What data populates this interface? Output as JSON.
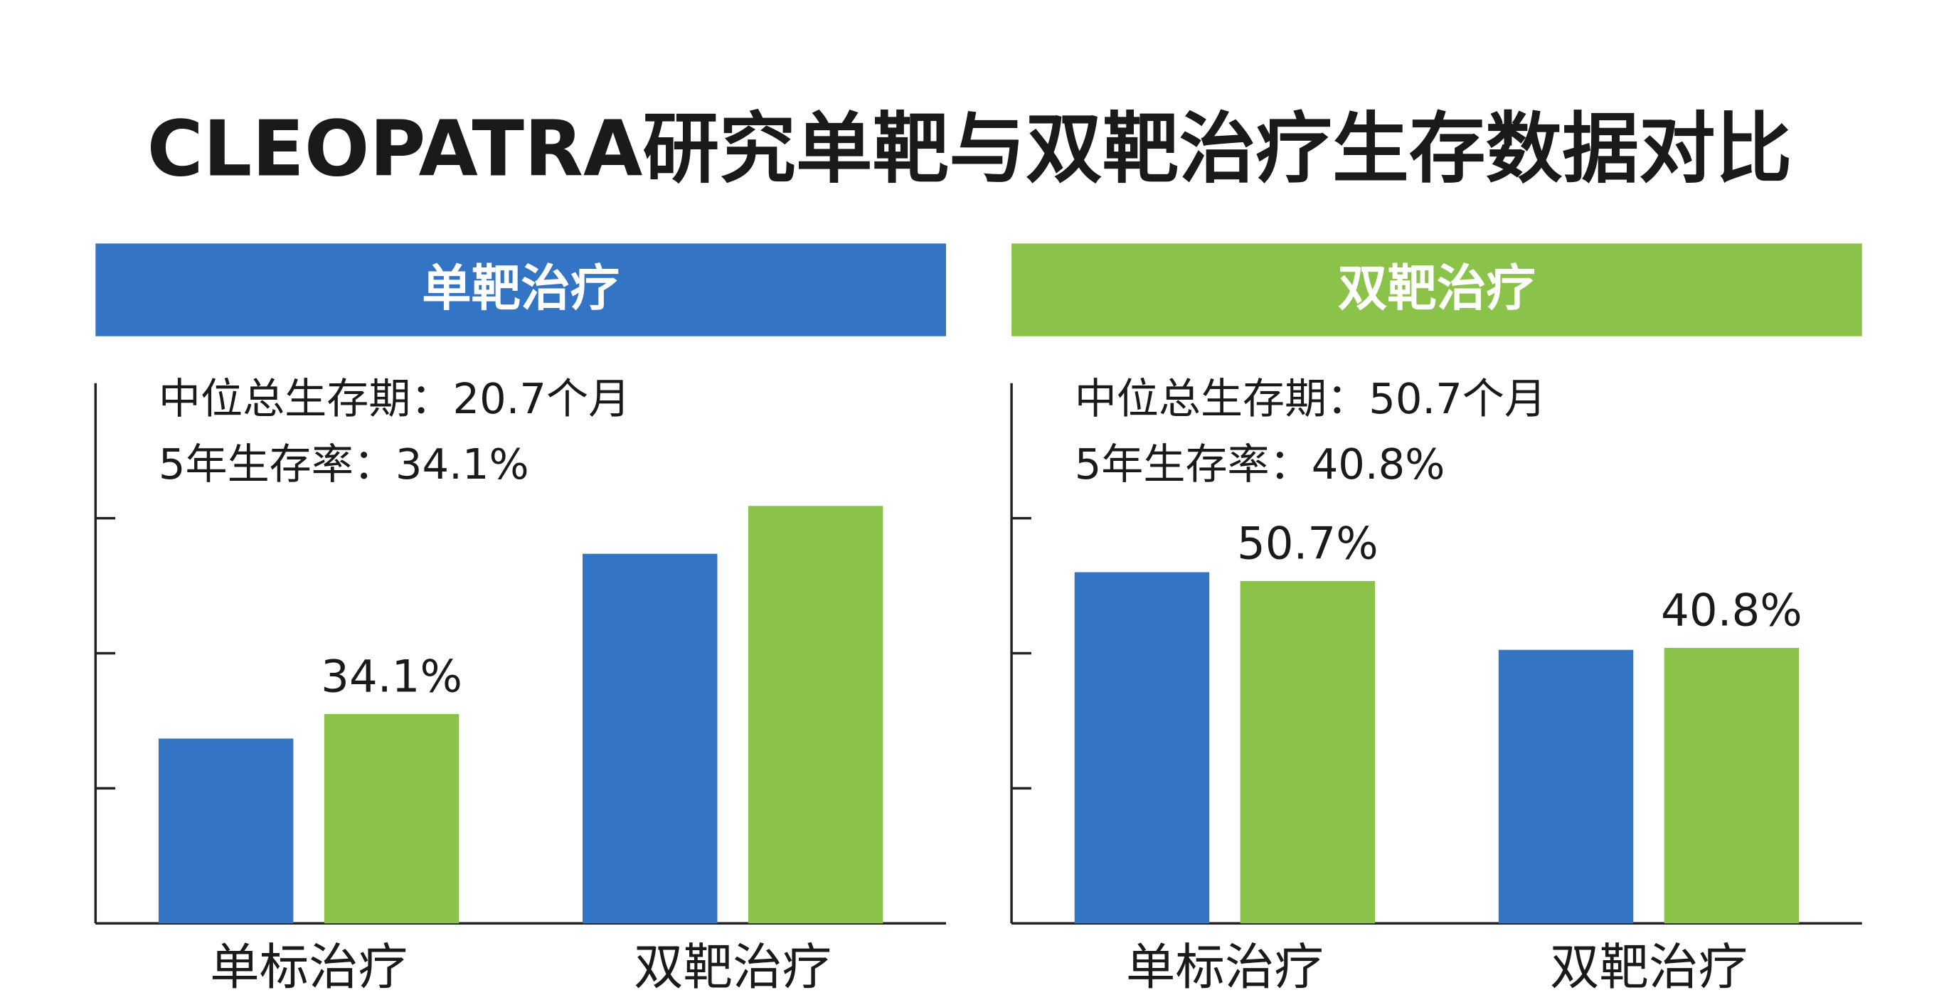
{
  "title": "CLEOPATRA研究单靶与双靶治疗生存数据对比",
  "chart_data": [
    {
      "type": "bar",
      "title": "单靶治疗",
      "title_color": "#3474c4",
      "annotations": [
        "中位总生存期：20.7个月",
        "5年生存率：34.1%"
      ],
      "categories": [
        "单标治疗",
        "双靶治疗"
      ],
      "series": [
        {
          "color": "#3474c4",
          "values": [
            30.1,
            60.2
          ],
          "value_labels": [
            null,
            null
          ]
        },
        {
          "color": "#8bc34a",
          "values": [
            34.1,
            68.0
          ],
          "value_labels": [
            "34.1%",
            null
          ]
        }
      ],
      "ylim": [
        0,
        88
      ],
      "yticks": [
        0,
        22,
        44,
        66
      ]
    },
    {
      "type": "bar",
      "title": "双靶治疗",
      "title_color": "#8bc34a",
      "annotations": [
        "中位总生存期：50.7个月",
        "5年生存率：40.8%"
      ],
      "categories": [
        "单标治疗",
        "双靶治疗"
      ],
      "series": [
        {
          "color": "#3474c4",
          "values": [
            52.0,
            40.5
          ],
          "value_labels": [
            null,
            null
          ]
        },
        {
          "color": "#8bc34a",
          "values": [
            50.7,
            40.8
          ],
          "value_labels": [
            "50.7%",
            "40.8%"
          ]
        }
      ],
      "ylim": [
        0,
        80
      ],
      "yticks": [
        0,
        20,
        40,
        60
      ]
    }
  ]
}
